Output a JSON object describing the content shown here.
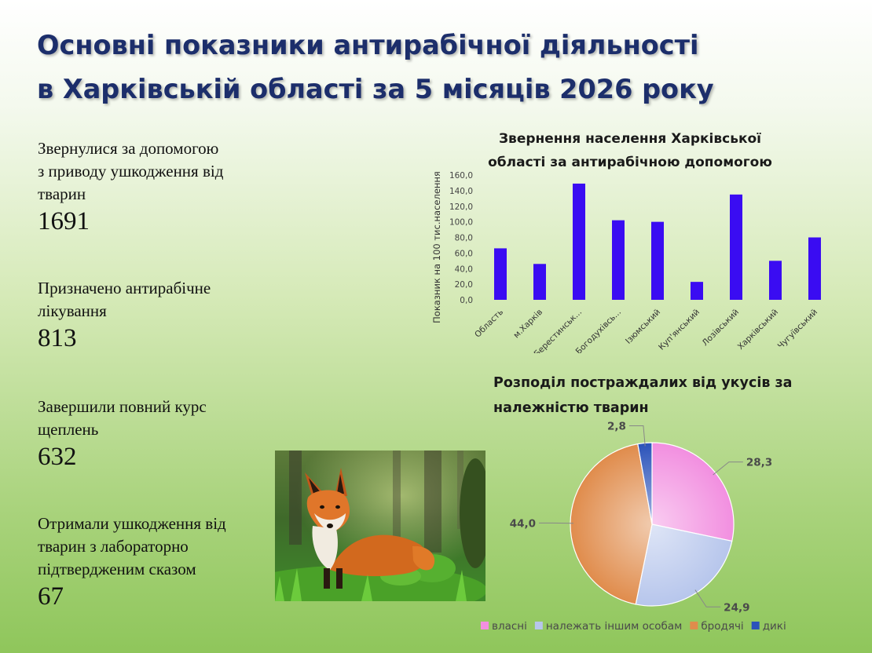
{
  "header": {
    "title_line1": "Основні показники антирабічної діяльності",
    "title_line2": "в Харківській області за 5 місяців 2026 року"
  },
  "stats": [
    {
      "label": "Звернулися за допомогою\nз приводу ушкодження від\nтварин",
      "value": "1691"
    },
    {
      "label": "Призначено  антирабічне\nлікування",
      "value": "813"
    },
    {
      "label": "Завершили повний курс\nщеплень",
      "value": "632"
    },
    {
      "label": "Отримали ушкодження від\nтварин з лабораторно\nпідтвердженим сказом",
      "value": "67"
    }
  ],
  "photo": {
    "icon": "fox-image"
  },
  "chart_data": [
    {
      "type": "bar",
      "title_lines": [
        "Звернення населення Харківської",
        "області за антирабічною допомогою"
      ],
      "ylabel": "Показник на 100 тис.населення",
      "categories": [
        "Область",
        "м.Харків",
        "Берестинськ...",
        "Богодухівсь...",
        "Ізюмський",
        "Куп'янський",
        "Лозівський",
        "Харківський",
        "Чугуївський"
      ],
      "values": [
        66,
        46,
        149,
        102,
        100,
        23,
        135,
        50,
        80
      ],
      "ylim": [
        0,
        160
      ],
      "yticks": [
        "0,0",
        "20,0",
        "40,0",
        "60,0",
        "80,0",
        "100,0",
        "120,0",
        "140,0",
        "160,0"
      ],
      "color": "#3a0cf2",
      "grid": false
    },
    {
      "type": "pie",
      "title_lines": [
        "Розподіл постраждалих від укусів за",
        "належністю тварин"
      ],
      "slices": [
        {
          "name": "власні",
          "value": 28.3,
          "label": "28,3",
          "color": "#f28fe0"
        },
        {
          "name": "належать іншим особам",
          "value": 24.9,
          "label": "24,9",
          "color": "#b7c6ec"
        },
        {
          "name": "бродячі",
          "value": 44.0,
          "label": "44,0",
          "color": "#e08c4c"
        },
        {
          "name": "дикі",
          "value": 2.8,
          "label": "2,8",
          "color": "#2b53ba"
        }
      ],
      "legend_position": "bottom"
    }
  ]
}
